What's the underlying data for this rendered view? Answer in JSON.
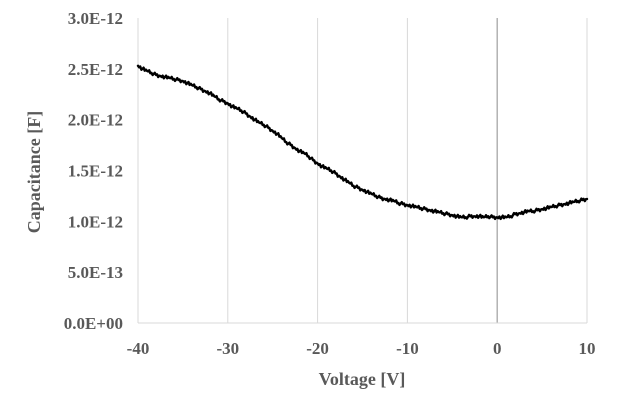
{
  "chart_data": {
    "type": "line",
    "title": "",
    "xlabel": "Voltage [V]",
    "ylabel": "Capacitance [F]",
    "xlim": [
      -40,
      10
    ],
    "ylim": [
      0,
      3e-12
    ],
    "x_ticks": [
      {
        "value": -40,
        "label": "-40"
      },
      {
        "value": -30,
        "label": "-30"
      },
      {
        "value": -20,
        "label": "-20"
      },
      {
        "value": -10,
        "label": "-10"
      },
      {
        "value": 0,
        "label": "0"
      },
      {
        "value": 10,
        "label": "10"
      }
    ],
    "y_ticks": [
      {
        "value": 0,
        "label": "0.0E+00"
      },
      {
        "value": 5e-13,
        "label": "5.0E-13"
      },
      {
        "value": 1e-12,
        "label": "1.0E-12"
      },
      {
        "value": 1.5e-12,
        "label": "1.5E-12"
      },
      {
        "value": 2e-12,
        "label": "2.0E-12"
      },
      {
        "value": 2.5e-12,
        "label": "2.5E-12"
      },
      {
        "value": 3e-12,
        "label": "3.0E-12"
      }
    ],
    "grid": "vertical",
    "zero_line_x": 0,
    "legend": "none",
    "colors": {
      "line": "#000000",
      "grid": "#d9d9d9",
      "zero_line": "#a6a6a6",
      "text": "#595959"
    },
    "series": [
      {
        "x": [
          -40,
          -39.5,
          -39,
          -38.5,
          -38,
          -37.5,
          -37,
          -36.5,
          -36,
          -35.5,
          -35,
          -34.5,
          -34,
          -33.5,
          -33,
          -32.5,
          -32,
          -31.5,
          -31,
          -30.5,
          -30,
          -29.5,
          -29,
          -28.5,
          -28,
          -27.5,
          -27,
          -26.5,
          -26,
          -25.5,
          -25,
          -24.5,
          -24,
          -23.5,
          -23,
          -22.5,
          -22,
          -21.5,
          -21,
          -20.5,
          -20,
          -19.5,
          -19,
          -18.5,
          -18,
          -17.5,
          -17,
          -16.5,
          -16,
          -15.5,
          -15,
          -14.5,
          -14,
          -13.5,
          -13,
          -12.5,
          -12,
          -11.5,
          -11,
          -10.5,
          -10,
          -9.5,
          -9,
          -8.5,
          -8,
          -7.5,
          -7,
          -6.5,
          -6,
          -5.5,
          -5,
          -4.5,
          -4,
          -3.5,
          -3,
          -2.5,
          -2,
          -1.5,
          -1,
          -0.5,
          0,
          0.5,
          1,
          1.5,
          2,
          2.5,
          3,
          3.5,
          4,
          4.5,
          5,
          5.5,
          6,
          6.5,
          7,
          7.5,
          8,
          8.5,
          9,
          9.5,
          10
        ],
        "y": [
          2.53e-12,
          2.5e-12,
          2.48e-12,
          2.46e-12,
          2.44e-12,
          2.43e-12,
          2.42e-12,
          2.41e-12,
          2.4e-12,
          2.39e-12,
          2.38e-12,
          2.36e-12,
          2.34e-12,
          2.32e-12,
          2.3e-12,
          2.28e-12,
          2.26e-12,
          2.23e-12,
          2.2e-12,
          2.18e-12,
          2.16e-12,
          2.13e-12,
          2.11e-12,
          2.09e-12,
          2.06e-12,
          2.03e-12,
          2e-12,
          1.97e-12,
          1.95e-12,
          1.92e-12,
          1.89e-12,
          1.86e-12,
          1.82e-12,
          1.78e-12,
          1.75e-12,
          1.72e-12,
          1.69e-12,
          1.67e-12,
          1.64e-12,
          1.6e-12,
          1.57e-12,
          1.54e-12,
          1.52e-12,
          1.5e-12,
          1.47e-12,
          1.44e-12,
          1.41e-12,
          1.38e-12,
          1.35e-12,
          1.33e-12,
          1.31e-12,
          1.29e-12,
          1.27e-12,
          1.25e-12,
          1.23e-12,
          1.22e-12,
          1.21e-12,
          1.2e-12,
          1.18e-12,
          1.17e-12,
          1.16e-12,
          1.15e-12,
          1.14e-12,
          1.13e-12,
          1.12e-12,
          1.11e-12,
          1.1e-12,
          1.09e-12,
          1.08e-12,
          1.07e-12,
          1.06e-12,
          1.05e-12,
          1.04e-12,
          1.04e-12,
          1.05e-12,
          1.05e-12,
          1.05e-12,
          1.04e-12,
          1.05e-12,
          1.04e-12,
          1.04e-12,
          1.04e-12,
          1.04e-12,
          1.05e-12,
          1.07e-12,
          1.08e-12,
          1.09e-12,
          1.1e-12,
          1.1e-12,
          1.11e-12,
          1.12e-12,
          1.13e-12,
          1.14e-12,
          1.15e-12,
          1.16e-12,
          1.17e-12,
          1.18e-12,
          1.19e-12,
          1.2e-12,
          1.21e-12,
          1.22e-12
        ]
      }
    ]
  }
}
